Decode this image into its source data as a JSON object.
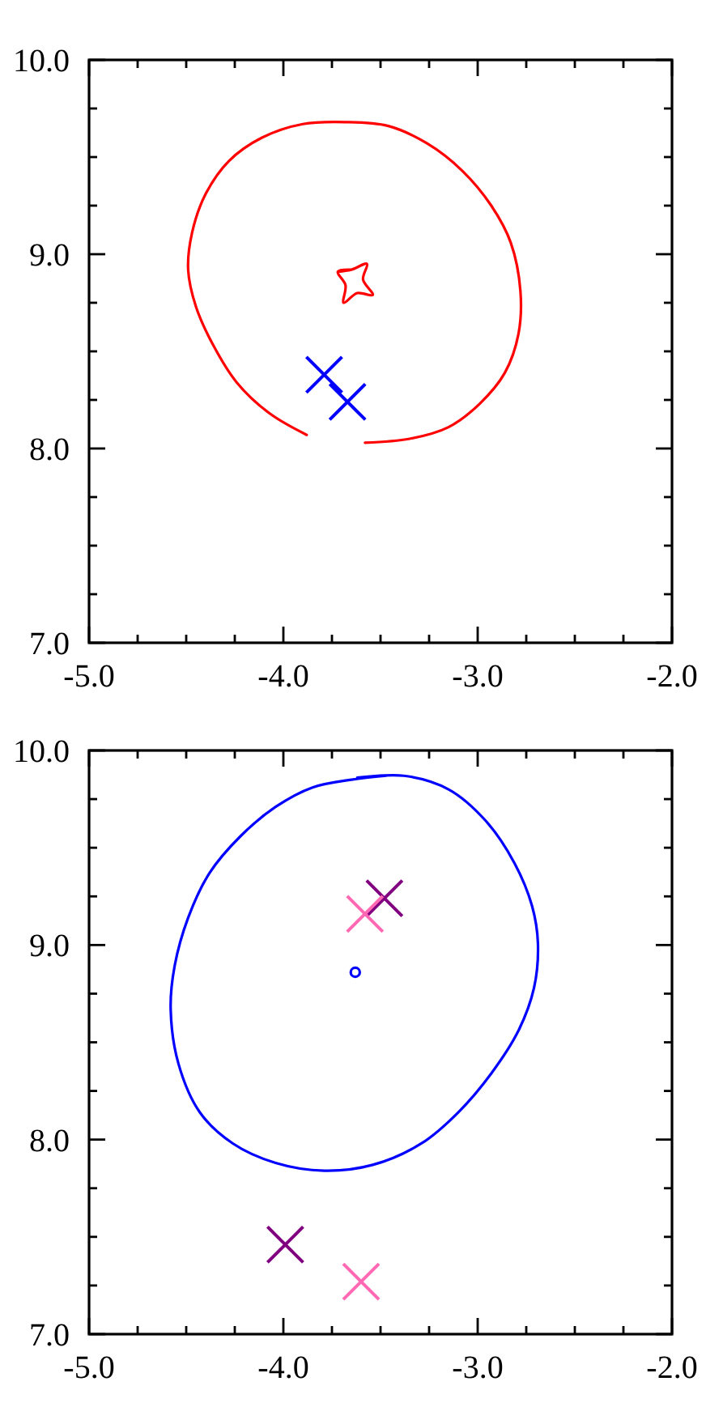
{
  "chart_data": [
    {
      "type": "line",
      "xlim": [
        -5,
        -2
      ],
      "ylim": [
        7,
        10
      ],
      "xticks": [
        {
          "value": -5,
          "label": "-5.0"
        },
        {
          "value": -4.75,
          "label": null
        },
        {
          "value": -4.5,
          "label": null
        },
        {
          "value": -4.25,
          "label": null
        },
        {
          "value": -4,
          "label": "-4.0"
        },
        {
          "value": -3.75,
          "label": null
        },
        {
          "value": -3.5,
          "label": null
        },
        {
          "value": -3.25,
          "label": null
        },
        {
          "value": -3,
          "label": "-3.0"
        },
        {
          "value": -2.75,
          "label": null
        },
        {
          "value": -2.5,
          "label": null
        },
        {
          "value": -2.25,
          "label": null
        },
        {
          "value": -2,
          "label": "-2.0"
        }
      ],
      "yticks": [
        {
          "value": 7,
          "label": "7.0"
        },
        {
          "value": 7.25,
          "label": null
        },
        {
          "value": 7.5,
          "label": null
        },
        {
          "value": 7.75,
          "label": null
        },
        {
          "value": 8,
          "label": "8.0"
        },
        {
          "value": 8.25,
          "label": null
        },
        {
          "value": 8.5,
          "label": null
        },
        {
          "value": 8.75,
          "label": null
        },
        {
          "value": 9,
          "label": "9.0"
        },
        {
          "value": 9.25,
          "label": null
        },
        {
          "value": 9.5,
          "label": null
        },
        {
          "value": 9.75,
          "label": null
        },
        {
          "value": 10,
          "label": "10.0"
        }
      ],
      "series": [
        {
          "color": "#ff0000",
          "x": [
            -3.88,
            -4.07,
            -4.24,
            -4.36,
            -4.45,
            -4.49,
            -4.47,
            -4.4,
            -4.28,
            -4.11,
            -3.9,
            -3.68,
            -3.46,
            -3.26,
            -3.08,
            -2.93,
            -2.83,
            -2.78,
            -2.79,
            -2.86,
            -2.99,
            -3.15,
            -3.35,
            -3.58
          ],
          "values": [
            8.07,
            8.18,
            8.34,
            8.53,
            8.73,
            8.92,
            9.11,
            9.31,
            9.48,
            9.6,
            9.67,
            9.68,
            9.66,
            9.57,
            9.43,
            9.25,
            9.06,
            8.81,
            8.59,
            8.39,
            8.23,
            8.11,
            8.05,
            8.03
          ]
        },
        {
          "color": "#ff0000",
          "x": [
            -3.72,
            -3.65,
            -3.57,
            -3.59,
            -3.54,
            -3.62,
            -3.69,
            -3.68,
            -3.72,
            -3.65
          ],
          "values": [
            8.91,
            8.92,
            8.95,
            8.87,
            8.79,
            8.8,
            8.75,
            8.84,
            8.91,
            8.92
          ]
        },
        {
          "type": "scatter",
          "marker": "cross",
          "color": "#0000ff",
          "x": [
            -3.79,
            -3.67
          ],
          "values": [
            8.38,
            8.24
          ]
        }
      ]
    },
    {
      "type": "line",
      "xlim": [
        -5,
        -2
      ],
      "ylim": [
        7,
        10
      ],
      "xticks": [
        {
          "value": -5,
          "label": "-5.0"
        },
        {
          "value": -4.75,
          "label": null
        },
        {
          "value": -4.5,
          "label": null
        },
        {
          "value": -4.25,
          "label": null
        },
        {
          "value": -4,
          "label": "-4.0"
        },
        {
          "value": -3.75,
          "label": null
        },
        {
          "value": -3.5,
          "label": null
        },
        {
          "value": -3.25,
          "label": null
        },
        {
          "value": -3,
          "label": "-3.0"
        },
        {
          "value": -2.75,
          "label": null
        },
        {
          "value": -2.5,
          "label": null
        },
        {
          "value": -2.25,
          "label": null
        },
        {
          "value": -2,
          "label": "-2.0"
        }
      ],
      "yticks": [
        {
          "value": 7,
          "label": "7.0"
        },
        {
          "value": 7.25,
          "label": null
        },
        {
          "value": 7.5,
          "label": null
        },
        {
          "value": 7.75,
          "label": null
        },
        {
          "value": 8,
          "label": "8.0"
        },
        {
          "value": 8.25,
          "label": null
        },
        {
          "value": 8.5,
          "label": null
        },
        {
          "value": 8.75,
          "label": null
        },
        {
          "value": 9,
          "label": "9.0"
        },
        {
          "value": 9.25,
          "label": null
        },
        {
          "value": 9.5,
          "label": null
        },
        {
          "value": 9.75,
          "label": null
        },
        {
          "value": 10,
          "label": "10.0"
        }
      ],
      "series": [
        {
          "color": "#0000ff",
          "x": [
            -3.62,
            -3.38,
            -3.15,
            -2.96,
            -2.81,
            -2.72,
            -2.69,
            -2.71,
            -2.79,
            -2.93,
            -3.1,
            -3.29,
            -3.54,
            -3.79,
            -4.04,
            -4.26,
            -4.43,
            -4.54,
            -4.58,
            -4.56,
            -4.49,
            -4.38,
            -4.22,
            -4.04,
            -3.85,
            -3.65,
            -3.47
          ],
          "values": [
            9.86,
            9.87,
            9.8,
            9.64,
            9.42,
            9.2,
            9.01,
            8.78,
            8.56,
            8.34,
            8.14,
            7.98,
            7.87,
            7.84,
            7.88,
            7.98,
            8.14,
            8.39,
            8.67,
            8.89,
            9.14,
            9.37,
            9.56,
            9.71,
            9.81,
            9.85,
            9.87
          ]
        },
        {
          "type": "scatter",
          "marker": "circle",
          "color": "#0000ff",
          "x": [
            -3.63
          ],
          "values": [
            8.86
          ]
        },
        {
          "type": "scatter",
          "marker": "cross",
          "color": "#800080",
          "x": [
            -3.48,
            -3.99
          ],
          "values": [
            9.24,
            7.46
          ]
        },
        {
          "type": "scatter",
          "marker": "cross",
          "color": "#ff69b4",
          "x": [
            -3.58,
            -3.6
          ],
          "values": [
            9.16,
            7.27
          ]
        }
      ]
    }
  ]
}
